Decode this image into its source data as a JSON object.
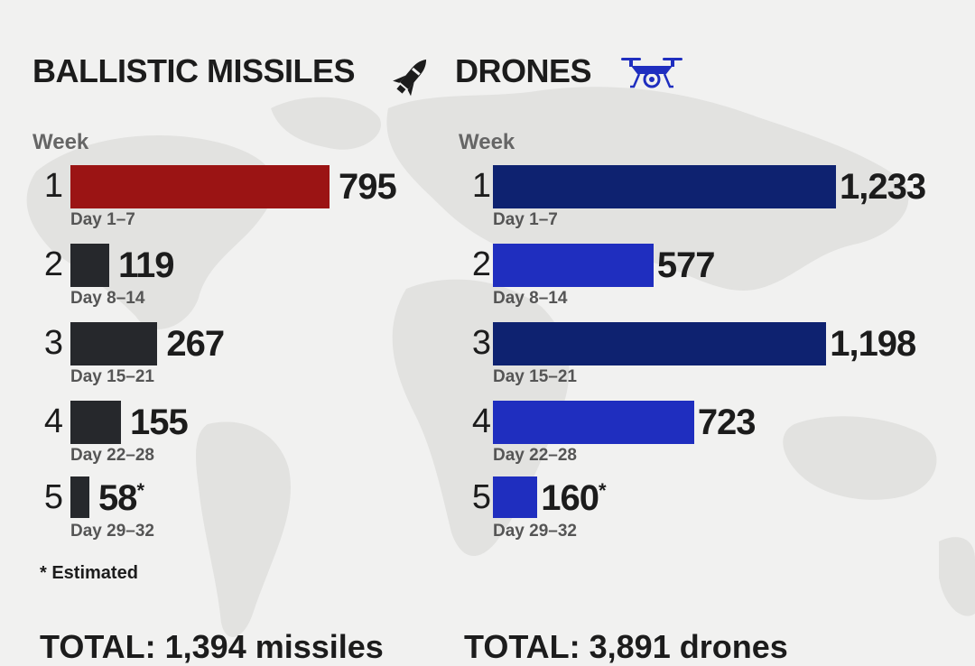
{
  "colors": {
    "missile_week1": "#9b1414",
    "missile_other": "#26282c",
    "drone_dark": "#0e2270",
    "drone_light": "#1f2ebf"
  },
  "icons": {
    "missiles": "missile-icon",
    "drones": "drone-icon"
  },
  "note": "* Estimated",
  "chart_data": [
    {
      "type": "bar",
      "orientation": "horizontal",
      "title": "BALLISTIC MISSILES",
      "axis_label": "Week",
      "categories": [
        "1",
        "2",
        "3",
        "4",
        "5"
      ],
      "sublabels": [
        "Day 1–7",
        "Day 8–14",
        "Day 15–21",
        "Day 22–28",
        "Day 29–32"
      ],
      "values": [
        795,
        119,
        267,
        155,
        58
      ],
      "value_labels": [
        "795",
        "119",
        "267",
        "155",
        "58"
      ],
      "estimated": [
        false,
        false,
        false,
        false,
        true
      ],
      "bar_colors": [
        "#9b1414",
        "#26282c",
        "#26282c",
        "#26282c",
        "#26282c"
      ],
      "total_label": "TOTAL: 1,394 missiles"
    },
    {
      "type": "bar",
      "orientation": "horizontal",
      "title": "DRONES",
      "axis_label": "Week",
      "categories": [
        "1",
        "2",
        "3",
        "4",
        "5"
      ],
      "sublabels": [
        "Day 1–7",
        "Day 8–14",
        "Day 15–21",
        "Day 22–28",
        "Day 29–32"
      ],
      "values": [
        1233,
        577,
        1198,
        723,
        160
      ],
      "value_labels": [
        "1,233",
        "577",
        "1,198",
        "723",
        "160"
      ],
      "estimated": [
        false,
        false,
        false,
        false,
        true
      ],
      "bar_colors": [
        "#0e2270",
        "#1f2ebf",
        "#0e2270",
        "#1f2ebf",
        "#1f2ebf"
      ],
      "total_label": "TOTAL: 3,891 drones"
    }
  ]
}
